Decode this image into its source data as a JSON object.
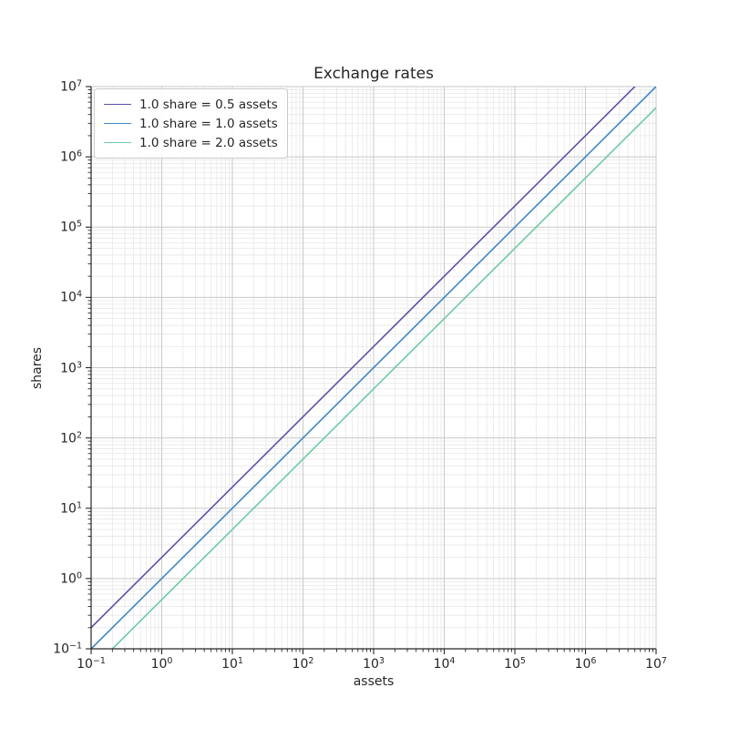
{
  "figure": {
    "background": "#ffffff"
  },
  "chart_data": {
    "type": "line",
    "title": "Exchange rates",
    "xlabel": "assets",
    "ylabel": "shares",
    "xscale": "log",
    "yscale": "log",
    "xlim": [
      0.1,
      10000000
    ],
    "ylim": [
      0.1,
      10000000
    ],
    "x_tick_exponents": [
      -1,
      0,
      1,
      2,
      3,
      4,
      5,
      6,
      7
    ],
    "y_tick_exponents": [
      -1,
      0,
      1,
      2,
      3,
      4,
      5,
      6,
      7
    ],
    "grid": "major+minor",
    "legend_position": "upper-left",
    "series": [
      {
        "name": "1.0 share = 0.5 assets",
        "color": "#5c53a5",
        "assets_per_share": 0.5,
        "x": [
          0.1,
          10000000
        ],
        "y": [
          0.2,
          20000000
        ]
      },
      {
        "name": "1.0 share = 1.0 assets",
        "color": "#3f86c5",
        "assets_per_share": 1.0,
        "x": [
          0.1,
          10000000
        ],
        "y": [
          0.1,
          10000000
        ]
      },
      {
        "name": "1.0 share = 2.0 assets",
        "color": "#6dcba3",
        "assets_per_share": 2.0,
        "x": [
          0.1,
          10000000
        ],
        "y": [
          0.05,
          5000000
        ]
      }
    ],
    "colors": {
      "grid_major": "#c9c9c9",
      "grid_minor": "#e7e7e7",
      "spine": "#262626",
      "tick": "#262626",
      "text": "#262626"
    }
  }
}
